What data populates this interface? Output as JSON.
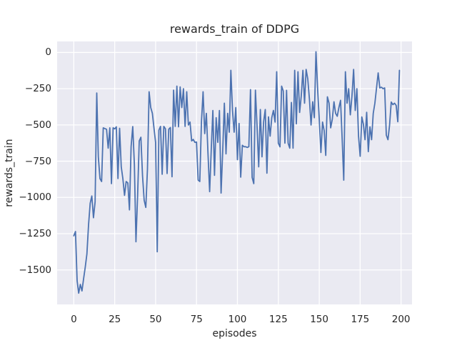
{
  "chart_data": {
    "type": "line",
    "title": "rewards_train of DDPG",
    "xlabel": "episodes",
    "ylabel": "rewards_train",
    "xlim": [
      -10.2,
      206.7
    ],
    "ylim": [
      -1738,
      76
    ],
    "grid": true,
    "legend": "none",
    "background_color": "#eaeaf2",
    "grid_color": "#ffffff",
    "line_color": "#4c72b0",
    "text_color": "#262626",
    "xticks": [
      0,
      25,
      50,
      75,
      100,
      125,
      150,
      175,
      200
    ],
    "xtick_labels": [
      "0",
      "25",
      "50",
      "75",
      "100",
      "125",
      "150",
      "175",
      "200"
    ],
    "yticks": [
      0,
      -250,
      -500,
      -750,
      -1000,
      -1250,
      -1500
    ],
    "ytick_labels": [
      "0",
      "−250",
      "−500",
      "−750",
      "−1000",
      "−1250",
      "−1500"
    ],
    "series": [
      {
        "name": "rewards_train",
        "x_start": 0,
        "x_step": 1,
        "values": [
          -1265,
          -1235,
          -1575,
          -1660,
          -1600,
          -1645,
          -1560,
          -1480,
          -1390,
          -1190,
          -1040,
          -990,
          -1140,
          -1030,
          -280,
          -720,
          -870,
          -890,
          -520,
          -525,
          -530,
          -660,
          -520,
          -905,
          -520,
          -527,
          -513,
          -870,
          -523,
          -789,
          -872,
          -986,
          -890,
          -900,
          -1086,
          -650,
          -511,
          -774,
          -1306,
          -988,
          -610,
          -585,
          -850,
          -1020,
          -1069,
          -806,
          -271,
          -380,
          -420,
          -520,
          -620,
          -1375,
          -536,
          -510,
          -840,
          -510,
          -527,
          -835,
          -530,
          -518,
          -857,
          -260,
          -510,
          -232,
          -513,
          -238,
          -380,
          -250,
          -510,
          -271,
          -500,
          -480,
          -610,
          -600,
          -620,
          -618,
          -880,
          -890,
          -480,
          -271,
          -560,
          -420,
          -700,
          -960,
          -675,
          -400,
          -848,
          -450,
          -620,
          -400,
          -970,
          -680,
          -350,
          -700,
          -420,
          -550,
          -123,
          -400,
          -550,
          -380,
          -740,
          -490,
          -860,
          -640,
          -650,
          -650,
          -655,
          -650,
          -256,
          -862,
          -905,
          -260,
          -510,
          -789,
          -394,
          -720,
          -478,
          -394,
          -833,
          -444,
          -577,
          -450,
          -400,
          -480,
          -133,
          -626,
          -651,
          -232,
          -266,
          -626,
          -261,
          -626,
          -660,
          -345,
          -660,
          -123,
          -493,
          -133,
          -414,
          -300,
          -123,
          -350,
          -117,
          -182,
          -320,
          -500,
          -340,
          -450,
          5,
          -250,
          -460,
          -690,
          -480,
          -540,
          -710,
          -306,
          -350,
          -520,
          -460,
          -340,
          -420,
          -440,
          -380,
          -330,
          -600,
          -881,
          -133,
          -350,
          -250,
          -430,
          -300,
          -117,
          -400,
          -250,
          -577,
          -716,
          -445,
          -495,
          -602,
          -413,
          -684,
          -513,
          -602,
          -420,
          -350,
          -245,
          -141,
          -245,
          -240,
          -250,
          -245,
          -570,
          -602,
          -500,
          -342,
          -360,
          -350,
          -365,
          -478,
          -123
        ]
      }
    ]
  }
}
